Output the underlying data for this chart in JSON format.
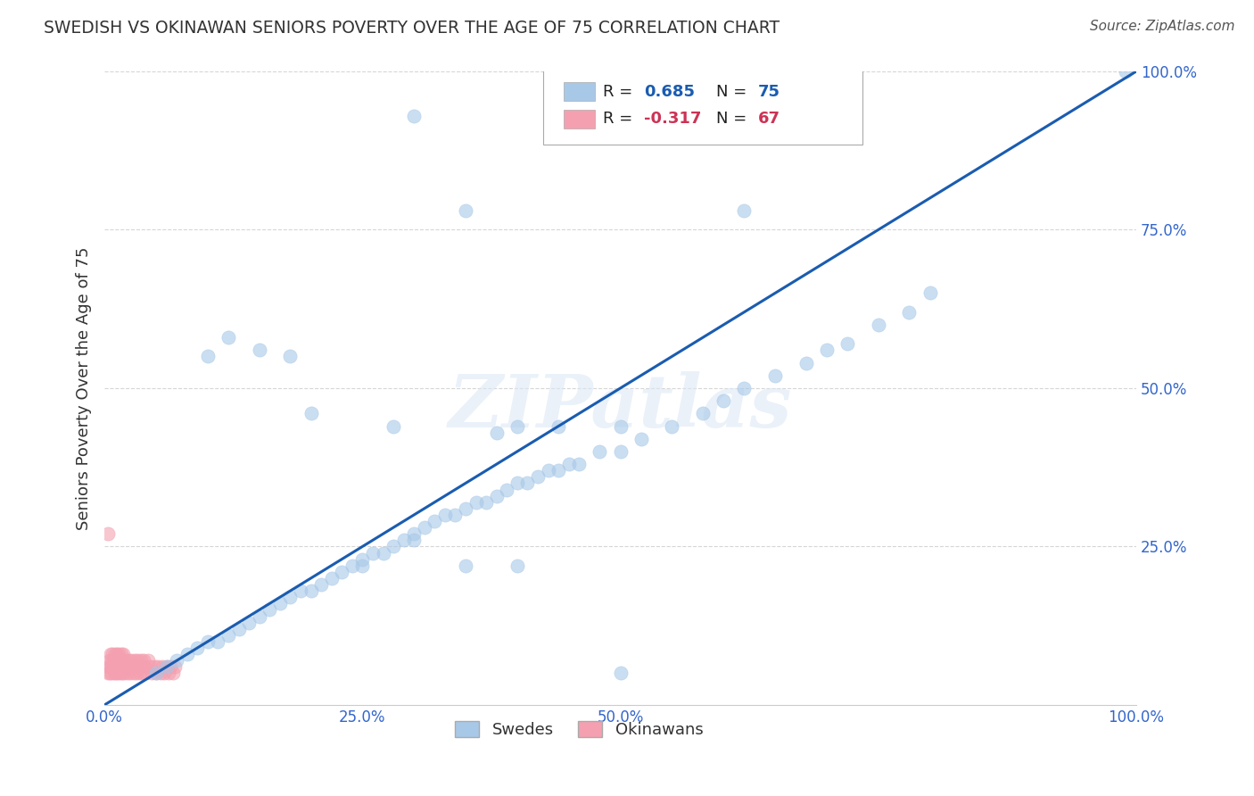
{
  "title": "SWEDISH VS OKINAWAN SENIORS POVERTY OVER THE AGE OF 75 CORRELATION CHART",
  "source": "Source: ZipAtlas.com",
  "ylabel": "Seniors Poverty Over the Age of 75",
  "watermark": "ZIPatlas",
  "blue_color": "#a8c8e8",
  "pink_color": "#f4a0b0",
  "line_color": "#1a5cb0",
  "axis_tick_color": "#3366cc",
  "title_color": "#333333",
  "background_color": "#ffffff",
  "swedes_x": [
    0.3,
    0.99,
    0.35,
    0.62,
    0.28,
    0.38,
    0.4,
    0.44,
    0.5,
    0.05,
    0.06,
    0.07,
    0.08,
    0.09,
    0.1,
    0.11,
    0.12,
    0.13,
    0.14,
    0.15,
    0.16,
    0.17,
    0.18,
    0.19,
    0.2,
    0.21,
    0.22,
    0.23,
    0.24,
    0.25,
    0.26,
    0.27,
    0.28,
    0.29,
    0.3,
    0.31,
    0.32,
    0.33,
    0.34,
    0.35,
    0.36,
    0.37,
    0.38,
    0.39,
    0.4,
    0.41,
    0.42,
    0.43,
    0.44,
    0.45,
    0.46,
    0.48,
    0.5,
    0.52,
    0.55,
    0.58,
    0.6,
    0.62,
    0.65,
    0.68,
    0.7,
    0.72,
    0.75,
    0.78,
    0.8,
    0.1,
    0.12,
    0.15,
    0.18,
    0.2,
    0.25,
    0.3,
    0.35,
    0.4,
    0.5
  ],
  "swedes_y": [
    0.93,
    1.0,
    0.78,
    0.78,
    0.44,
    0.43,
    0.44,
    0.44,
    0.44,
    0.05,
    0.06,
    0.07,
    0.08,
    0.09,
    0.1,
    0.1,
    0.11,
    0.12,
    0.13,
    0.14,
    0.15,
    0.16,
    0.17,
    0.18,
    0.18,
    0.19,
    0.2,
    0.21,
    0.22,
    0.23,
    0.24,
    0.24,
    0.25,
    0.26,
    0.27,
    0.28,
    0.29,
    0.3,
    0.3,
    0.31,
    0.32,
    0.32,
    0.33,
    0.34,
    0.35,
    0.35,
    0.36,
    0.37,
    0.37,
    0.38,
    0.38,
    0.4,
    0.4,
    0.42,
    0.44,
    0.46,
    0.48,
    0.5,
    0.52,
    0.54,
    0.56,
    0.57,
    0.6,
    0.62,
    0.65,
    0.55,
    0.58,
    0.56,
    0.55,
    0.46,
    0.22,
    0.26,
    0.22,
    0.22,
    0.05
  ],
  "okinawans_x": [
    0.003,
    0.004,
    0.005,
    0.005,
    0.006,
    0.006,
    0.007,
    0.007,
    0.008,
    0.008,
    0.009,
    0.009,
    0.01,
    0.01,
    0.011,
    0.011,
    0.012,
    0.012,
    0.013,
    0.013,
    0.014,
    0.014,
    0.015,
    0.015,
    0.016,
    0.016,
    0.017,
    0.017,
    0.018,
    0.018,
    0.019,
    0.02,
    0.021,
    0.022,
    0.023,
    0.024,
    0.025,
    0.026,
    0.027,
    0.028,
    0.029,
    0.03,
    0.031,
    0.032,
    0.033,
    0.034,
    0.035,
    0.036,
    0.037,
    0.038,
    0.039,
    0.04,
    0.042,
    0.044,
    0.046,
    0.048,
    0.05,
    0.052,
    0.054,
    0.056,
    0.058,
    0.06,
    0.062,
    0.064,
    0.066,
    0.068,
    0.003
  ],
  "okinawans_y": [
    0.05,
    0.06,
    0.05,
    0.07,
    0.06,
    0.08,
    0.05,
    0.07,
    0.06,
    0.08,
    0.05,
    0.07,
    0.06,
    0.08,
    0.05,
    0.07,
    0.06,
    0.08,
    0.05,
    0.07,
    0.06,
    0.08,
    0.05,
    0.07,
    0.06,
    0.08,
    0.05,
    0.07,
    0.06,
    0.08,
    0.05,
    0.07,
    0.06,
    0.05,
    0.07,
    0.06,
    0.05,
    0.07,
    0.06,
    0.05,
    0.07,
    0.06,
    0.05,
    0.07,
    0.06,
    0.05,
    0.07,
    0.06,
    0.05,
    0.07,
    0.06,
    0.05,
    0.07,
    0.06,
    0.05,
    0.06,
    0.05,
    0.06,
    0.05,
    0.06,
    0.05,
    0.06,
    0.05,
    0.06,
    0.05,
    0.06,
    0.27
  ],
  "xlim": [
    0.0,
    1.0
  ],
  "ylim": [
    0.0,
    1.0
  ],
  "xticks": [
    0.0,
    0.25,
    0.5,
    1.0
  ],
  "xticklabels": [
    "0.0%",
    "25.0%",
    "50.0%",
    "100.0%"
  ],
  "yticks": [
    0.25,
    0.5,
    0.75,
    1.0
  ],
  "yticklabels": [
    "25.0%",
    "50.0%",
    "75.0%",
    "100.0%"
  ]
}
